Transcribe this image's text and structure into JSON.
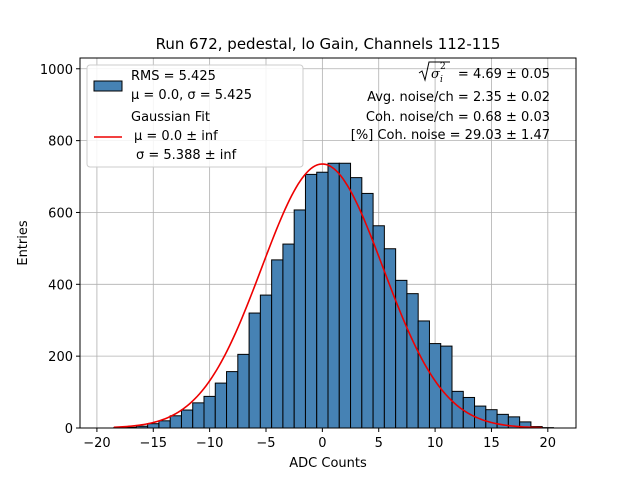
{
  "chart_data": {
    "type": "bar",
    "title": "Run 672, pedestal, lo Gain, Channels 112-115",
    "xlabel": "ADC Counts",
    "ylabel": "Entries",
    "xlim": [
      -21.5,
      22.5
    ],
    "ylim": [
      0,
      1030
    ],
    "xticks": [
      -20,
      -15,
      -10,
      -5,
      0,
      5,
      10,
      15,
      20
    ],
    "yticks": [
      0,
      200,
      400,
      600,
      800,
      1000
    ],
    "grid": true,
    "bin_edges": [
      -18.5,
      -17.5,
      -16.5,
      -15.5,
      -14.5,
      -13.5,
      -12.5,
      -11.5,
      -10.5,
      -9.5,
      -8.5,
      -7.5,
      -6.5,
      -5.5,
      -4.5,
      -3.5,
      -2.5,
      -1.5,
      -0.5,
      0.5,
      1.5,
      2.5,
      3.5,
      4.5,
      5.5,
      6.5,
      7.5,
      8.5,
      9.5,
      10.5,
      11.5,
      12.5,
      13.5,
      14.5,
      15.5,
      16.5,
      17.5,
      18.5,
      19.5,
      20.5
    ],
    "counts": [
      1,
      2,
      5,
      12,
      20,
      34,
      50,
      70,
      88,
      125,
      157,
      205,
      320,
      370,
      468,
      512,
      607,
      706,
      712,
      737,
      737,
      697,
      653,
      563,
      499,
      411,
      374,
      298,
      235,
      228,
      102,
      85,
      61,
      51,
      38,
      31,
      17,
      4,
      1
    ],
    "hist_color": "#4682b4",
    "fit": {
      "mu": 0.0,
      "sigma": 5.388,
      "amplitude": 735,
      "color": "#ee0000",
      "x_range": [
        -18.5,
        19.5
      ]
    },
    "legend": {
      "position": "upper-left",
      "hist_line1": "RMS = 5.425",
      "hist_line2": "μ = 0.0, σ = 5.425",
      "fit_title": "Gaussian Fit",
      "fit_line1": "μ = 0.0 ± inf",
      "fit_line2": "σ = 5.388 ± inf"
    },
    "annotations": {
      "position": "upper-right",
      "line1_value": " = 4.69 ± 0.05",
      "line2": "Avg. noise/ch = 2.35 ± 0.02",
      "line3": "Coh. noise/ch = 0.68 ± 0.03",
      "line4": "[%] Coh. noise = 29.03 ± 1.47"
    }
  }
}
